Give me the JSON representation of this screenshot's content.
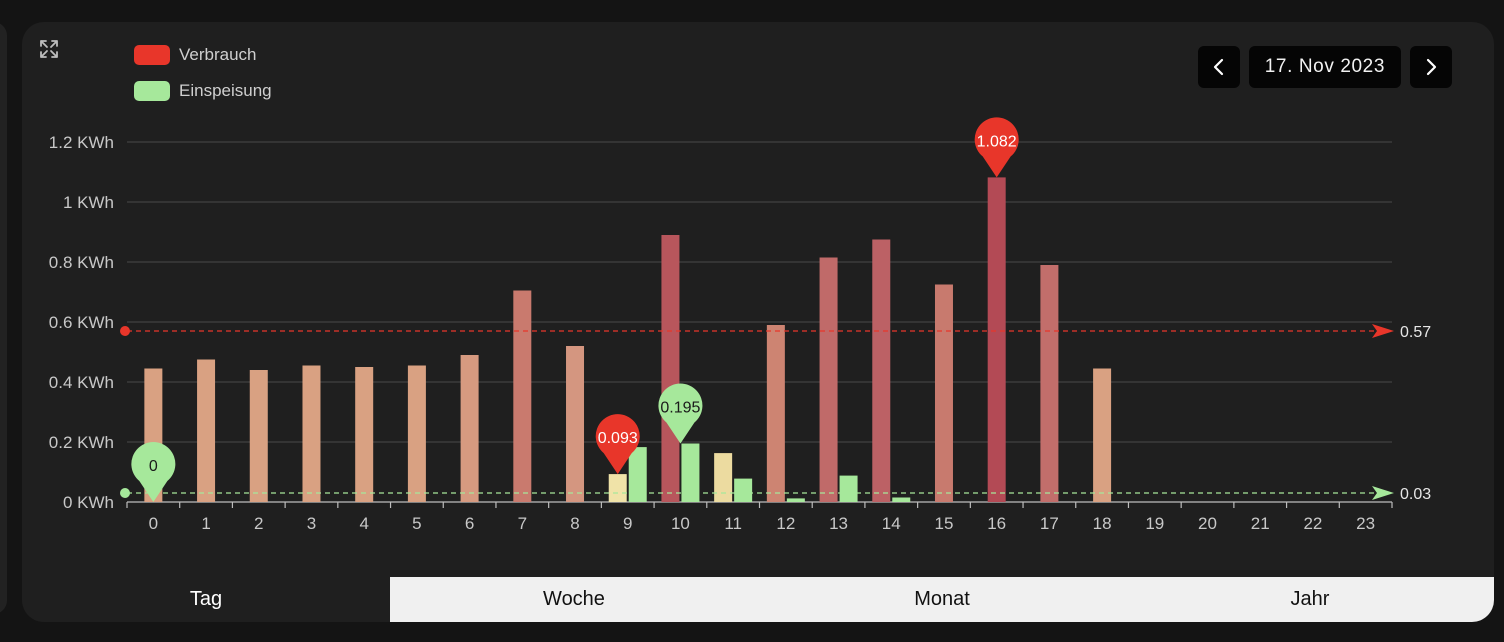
{
  "legend": [
    {
      "label": "Verbrauch",
      "color": "#e8362a"
    },
    {
      "label": "Einspeisung",
      "color": "#a6e89b"
    }
  ],
  "date_nav": {
    "date": "17. Nov 2023",
    "prev_icon": "chevron-left-icon",
    "next_icon": "chevron-right-icon"
  },
  "tabs": [
    {
      "label": "Tag",
      "active": true
    },
    {
      "label": "Woche",
      "active": false
    },
    {
      "label": "Monat",
      "active": false
    },
    {
      "label": "Jahr",
      "active": false
    }
  ],
  "chart_data": {
    "type": "bar",
    "title": "",
    "xlabel": "",
    "ylabel": "",
    "ylim": [
      0,
      1.2
    ],
    "ytick_values": [
      0,
      0.2,
      0.4,
      0.6,
      0.8,
      1.0,
      1.2
    ],
    "ytick_labels": [
      "0 KWh",
      "0.2 KWh",
      "0.4 KWh",
      "0.6 KWh",
      "0.8 KWh",
      "1 KWh",
      "1.2 KWh"
    ],
    "categories": [
      "0",
      "1",
      "2",
      "3",
      "4",
      "5",
      "6",
      "7",
      "8",
      "9",
      "10",
      "11",
      "12",
      "13",
      "14",
      "15",
      "16",
      "17",
      "18",
      "19",
      "20",
      "21",
      "22",
      "23"
    ],
    "series": [
      {
        "name": "Verbrauch",
        "colors": [
          "#d9a182",
          "#d9a182",
          "#d9a182",
          "#d9a182",
          "#d9a182",
          "#d9a182",
          "#d69a80",
          "#c97a6e",
          "#d49680",
          "#f0e3a8",
          "#b8565c",
          "#ecdba0",
          "#cd8472",
          "#c06a69",
          "#bc6165",
          "#c87a6e",
          "#b34a55",
          "#c26e6b",
          "#d9a182",
          null,
          null,
          null,
          null,
          null
        ],
        "values": [
          0.445,
          0.475,
          0.44,
          0.455,
          0.45,
          0.455,
          0.49,
          0.705,
          0.52,
          0.093,
          0.89,
          0.163,
          0.59,
          0.815,
          0.875,
          0.725,
          1.082,
          0.79,
          0.445,
          null,
          null,
          null,
          null,
          null
        ]
      },
      {
        "name": "Einspeisung",
        "color": "#a6e89b",
        "values": [
          0,
          0,
          0,
          0,
          0,
          0,
          0,
          0,
          0,
          0.183,
          0.195,
          0.078,
          0.012,
          0.088,
          0.015,
          0,
          0,
          0,
          0,
          null,
          null,
          null,
          null,
          null
        ]
      }
    ],
    "markers": [
      {
        "series": "Verbrauch",
        "category": "9",
        "value": 0.093,
        "label": "0.093",
        "color": "#e8362a"
      },
      {
        "series": "Verbrauch",
        "category": "16",
        "value": 1.082,
        "label": "1.082",
        "color": "#e8362a"
      },
      {
        "series": "Einspeisung",
        "category": "0",
        "value": 0,
        "label": "0",
        "color": "#a6e89b"
      },
      {
        "series": "Einspeisung",
        "category": "10",
        "value": 0.195,
        "label": "0.195",
        "color": "#a6e89b"
      }
    ],
    "mark_lines": [
      {
        "series": "Verbrauch",
        "value": 0.57,
        "label": "0.57",
        "color": "#e8362a"
      },
      {
        "series": "Einspeisung",
        "value": 0.03,
        "label": "0.03",
        "color": "#a6e89b"
      }
    ],
    "grid": true,
    "legend_position": "top-left"
  }
}
